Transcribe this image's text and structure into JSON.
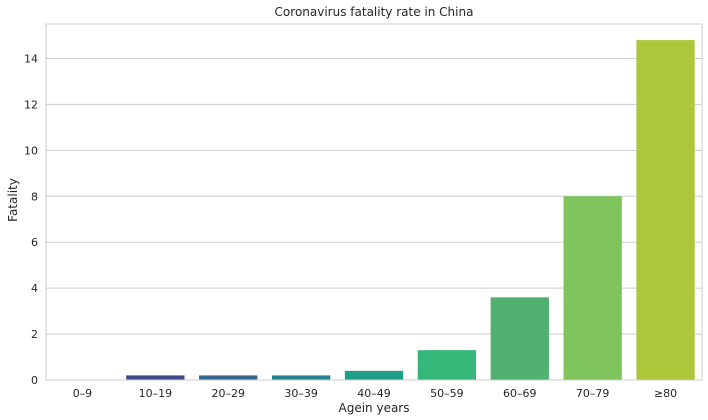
{
  "chart_data": {
    "type": "bar",
    "title": "Coronavirus fatality rate in China",
    "xlabel": "Agein years",
    "ylabel": "Fatality",
    "categories": [
      "0–9",
      "10–19",
      "20–29",
      "30–39",
      "40–49",
      "50–59",
      "60–69",
      "70–79",
      "≥80"
    ],
    "values": [
      0.0,
      0.2,
      0.2,
      0.2,
      0.4,
      1.3,
      3.6,
      8.0,
      14.8
    ],
    "colors": [
      "#440154",
      "#472d7b",
      "#3b528b",
      "#2c728e",
      "#21918c",
      "#28ae80",
      "#5ec962",
      "#addc30",
      "#fde725"
    ],
    "bar_colors_used": [
      "#46337e",
      "#3e4989",
      "#31688e",
      "#26828e",
      "#1f9e89",
      "#35b779",
      "#4fb06f",
      "#7ec35c",
      "#acc83a"
    ],
    "ylim": [
      0,
      15.5
    ],
    "yticks": [
      0,
      2,
      4,
      6,
      8,
      10,
      12,
      14
    ],
    "grid": "y",
    "style": "whitegrid"
  }
}
